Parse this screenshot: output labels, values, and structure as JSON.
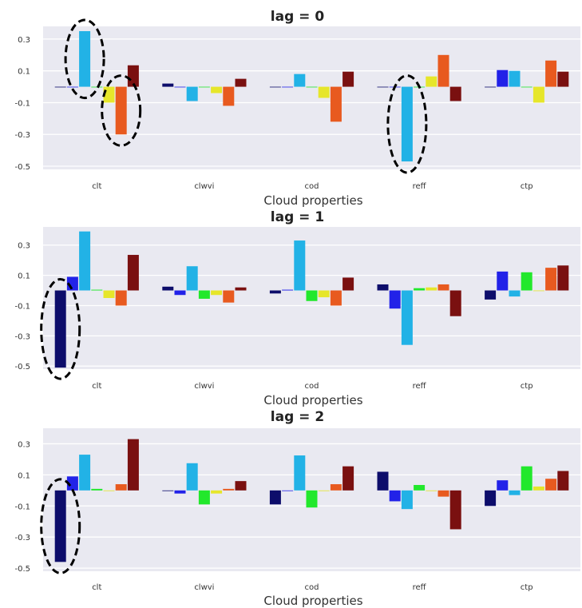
{
  "colors": {
    "plot_background": "#e9e9f1",
    "gridline": "#ffffff",
    "annotation_ellipse": "#000000",
    "bars": [
      "#0d0d6b",
      "#2222e8",
      "#22b2e6",
      "#22e82c",
      "#e6e62a",
      "#e85a1f",
      "#7a1010"
    ]
  },
  "chart_data": [
    {
      "type": "bar",
      "title": "lag = 0",
      "xlabel": "Cloud properties",
      "ylabel": "",
      "categories": [
        "clt",
        "clwvi",
        "cod",
        "reff",
        "ctp"
      ],
      "yticks": [
        0.3,
        0.1,
        -0.1,
        -0.3,
        -0.5
      ],
      "ytick_labels": [
        "0.3",
        "0.1",
        "-0.1",
        "-0.3",
        "-0.5"
      ],
      "ylim": [
        -0.52,
        0.38
      ],
      "grid": true,
      "series": [
        {
          "values": [
            0.0,
            0.02,
            0.0,
            0.0,
            0.0
          ]
        },
        {
          "values": [
            0.0,
            0.0,
            0.0,
            0.0,
            0.105
          ]
        },
        {
          "values": [
            0.35,
            -0.09,
            0.08,
            -0.47,
            0.1
          ]
        },
        {
          "values": [
            0.0,
            0.0,
            0.0,
            0.0,
            0.0
          ]
        },
        {
          "values": [
            -0.1,
            -0.04,
            -0.07,
            0.065,
            -0.1
          ]
        },
        {
          "values": [
            -0.3,
            -0.12,
            -0.22,
            0.2,
            0.165
          ]
        },
        {
          "values": [
            0.135,
            0.05,
            0.095,
            -0.09,
            0.095
          ]
        }
      ],
      "annotations": [
        {
          "type": "dashed-ellipse",
          "category": "clt",
          "series_index": 2
        },
        {
          "type": "dashed-ellipse",
          "category": "clt",
          "series_index": 5
        },
        {
          "type": "dashed-ellipse",
          "category": "reff",
          "series_index": 2
        }
      ]
    },
    {
      "type": "bar",
      "title": "lag = 1",
      "xlabel": "Cloud properties",
      "ylabel": "",
      "categories": [
        "clt",
        "clwvi",
        "cod",
        "reff",
        "ctp"
      ],
      "yticks": [
        0.3,
        0.1,
        -0.1,
        -0.3,
        -0.5
      ],
      "ytick_labels": [
        "0.3",
        "0.1",
        "-0.1",
        "-0.3",
        "-0.5"
      ],
      "ylim": [
        -0.52,
        0.42
      ],
      "grid": true,
      "series": [
        {
          "values": [
            -0.51,
            0.025,
            -0.02,
            0.04,
            -0.06
          ]
        },
        {
          "values": [
            0.09,
            -0.03,
            0.005,
            -0.12,
            0.125
          ]
        },
        {
          "values": [
            0.39,
            0.16,
            0.33,
            -0.36,
            -0.04
          ]
        },
        {
          "values": [
            0.005,
            -0.055,
            -0.07,
            0.015,
            0.12
          ]
        },
        {
          "values": [
            -0.05,
            -0.03,
            -0.045,
            0.02,
            0.0
          ]
        },
        {
          "values": [
            -0.1,
            -0.08,
            -0.1,
            0.04,
            0.15
          ]
        },
        {
          "values": [
            0.235,
            0.02,
            0.085,
            -0.17,
            0.165
          ]
        }
      ],
      "annotations": [
        {
          "type": "dashed-ellipse",
          "category": "clt",
          "series_index": 0
        }
      ]
    },
    {
      "type": "bar",
      "title": "lag = 2",
      "xlabel": "Cloud properties",
      "ylabel": "",
      "categories": [
        "clt",
        "clwvi",
        "cod",
        "reff",
        "ctp"
      ],
      "yticks": [
        0.3,
        0.1,
        -0.1,
        -0.3,
        -0.5
      ],
      "ytick_labels": [
        "0.3",
        "0.1",
        "-0.1",
        "-0.3",
        "-0.5"
      ],
      "ylim": [
        -0.52,
        0.4
      ],
      "grid": true,
      "series": [
        {
          "values": [
            -0.46,
            0.0,
            -0.09,
            0.12,
            -0.1
          ]
        },
        {
          "values": [
            0.09,
            -0.02,
            0.0,
            -0.07,
            0.065
          ]
        },
        {
          "values": [
            0.23,
            0.175,
            0.225,
            -0.12,
            -0.03
          ]
        },
        {
          "values": [
            0.01,
            -0.09,
            -0.11,
            0.035,
            0.155
          ]
        },
        {
          "values": [
            0.0,
            -0.02,
            0.0,
            0.0,
            0.025
          ]
        },
        {
          "values": [
            0.04,
            0.01,
            0.04,
            -0.04,
            0.075
          ]
        },
        {
          "values": [
            0.33,
            0.06,
            0.155,
            -0.25,
            0.125
          ]
        }
      ],
      "annotations": [
        {
          "type": "dashed-ellipse",
          "category": "clt",
          "series_index": 0
        }
      ]
    }
  ]
}
